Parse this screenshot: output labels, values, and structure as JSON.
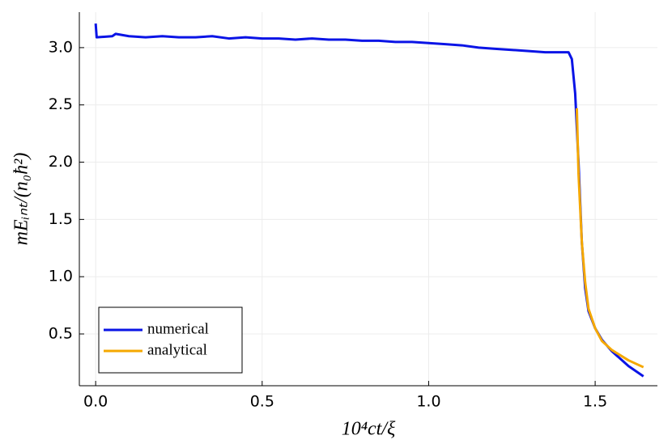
{
  "chart_data": {
    "type": "line",
    "xlabel": "10⁴ct/ξ",
    "ylabel": "mEᵢₙₜ/(n₀ħ²)",
    "xlim": [
      -0.049,
      1.687
    ],
    "ylim": [
      0.048,
      3.31
    ],
    "xticks": [
      {
        "value": 0,
        "label": "0.0"
      },
      0.5,
      {
        "value": 1,
        "label": "1.0"
      },
      1.5
    ],
    "yticks": [
      0.5,
      {
        "value": 1,
        "label": "1.0"
      },
      1.5,
      {
        "value": 2,
        "label": "2.0"
      },
      2.5,
      {
        "value": 3,
        "label": "3.0"
      }
    ],
    "grid": true,
    "legend": "lower-left",
    "series": [
      {
        "name": "numerical",
        "color": "#0a14e6",
        "x": [
          0,
          0.003,
          0.05,
          0.06,
          0.1,
          0.15,
          0.2,
          0.25,
          0.3,
          0.35,
          0.4,
          0.45,
          0.5,
          0.55,
          0.6,
          0.65,
          0.7,
          0.75,
          0.8,
          0.85,
          0.9,
          0.95,
          1.0,
          1.05,
          1.1,
          1.15,
          1.2,
          1.25,
          1.3,
          1.35,
          1.4,
          1.42,
          1.43,
          1.44,
          1.45,
          1.46,
          1.47,
          1.48,
          1.5,
          1.52,
          1.55,
          1.6,
          1.645
        ],
        "values": [
          3.21,
          3.09,
          3.1,
          3.12,
          3.1,
          3.09,
          3.1,
          3.09,
          3.09,
          3.1,
          3.08,
          3.09,
          3.08,
          3.08,
          3.07,
          3.08,
          3.07,
          3.07,
          3.06,
          3.06,
          3.05,
          3.05,
          3.04,
          3.03,
          3.02,
          3.0,
          2.99,
          2.98,
          2.97,
          2.96,
          2.96,
          2.96,
          2.9,
          2.6,
          2.0,
          1.3,
          0.9,
          0.7,
          0.55,
          0.45,
          0.35,
          0.22,
          0.13
        ]
      },
      {
        "name": "analytical",
        "color": "#f5a800",
        "x": [
          1.445,
          1.45,
          1.46,
          1.47,
          1.48,
          1.5,
          1.52,
          1.55,
          1.6,
          1.645
        ],
        "values": [
          2.47,
          1.9,
          1.3,
          0.95,
          0.72,
          0.55,
          0.44,
          0.36,
          0.27,
          0.21
        ]
      }
    ]
  }
}
